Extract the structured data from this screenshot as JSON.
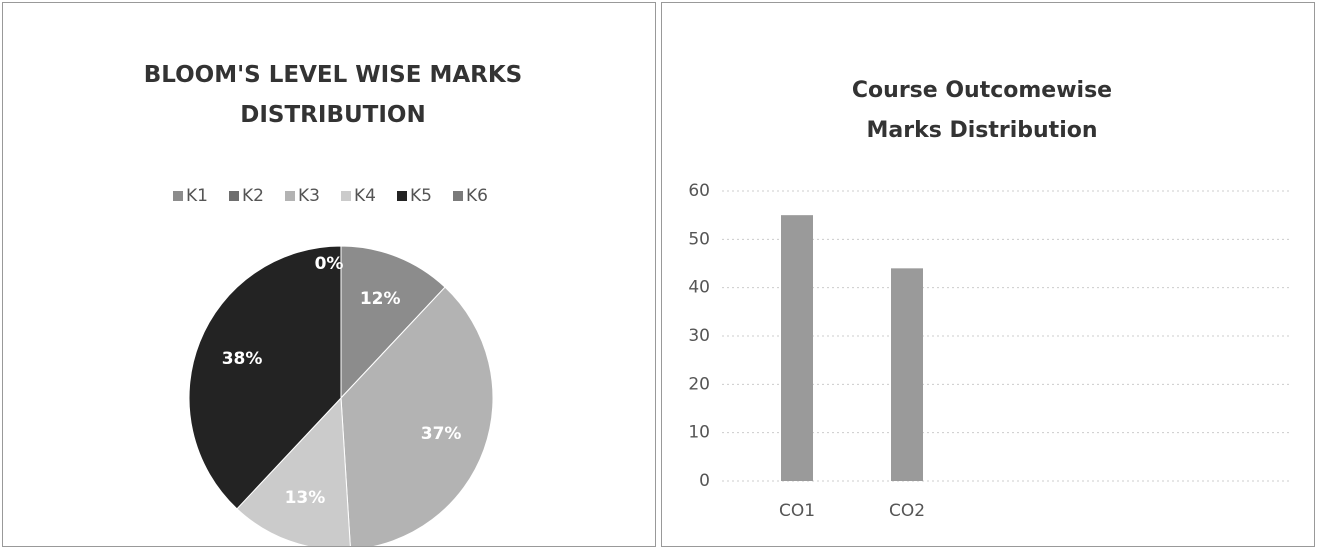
{
  "chart_data": [
    {
      "type": "pie",
      "title": "BLOOM'S LEVEL WISE MARKS DISTRIBUTION",
      "categories": [
        "K1",
        "K2",
        "K3",
        "K4",
        "K5",
        "K6"
      ],
      "values": [
        12,
        0,
        37,
        13,
        38,
        0
      ],
      "value_labels": [
        "12%",
        null,
        "37%",
        "13%",
        "38%",
        "0%"
      ],
      "colors": [
        "#8c8c8c",
        "#6e6e6e",
        "#b3b3b3",
        "#cbcbcb",
        "#232323",
        "#7a7a7a"
      ],
      "legend": "top"
    },
    {
      "type": "bar",
      "title": "Course Outcomewise Marks Distribution",
      "categories": [
        "CO1",
        "CO2"
      ],
      "values": [
        55,
        44
      ],
      "color": "#9a9a9a",
      "ylim": [
        0,
        60
      ],
      "yticks": [
        0,
        10,
        20,
        30,
        40,
        50,
        60
      ],
      "grid": true
    }
  ]
}
